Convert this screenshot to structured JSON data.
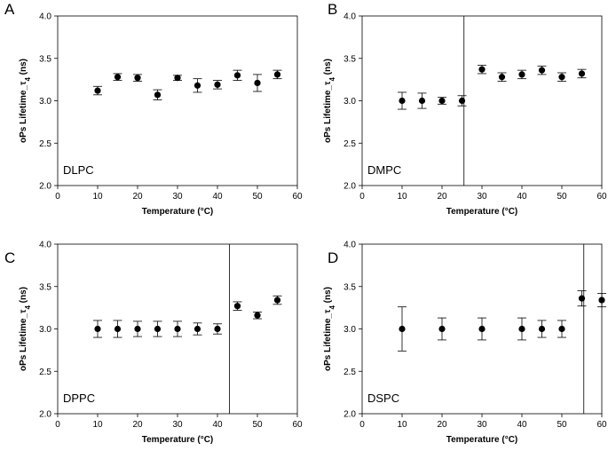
{
  "chart_data": [
    {
      "type": "scatter",
      "panel_letter": "A",
      "annotation": "DLPC",
      "xlabel": "Temperature (°C)",
      "ylabel": "oPs Lifetime_τ4 (ns)",
      "xlim": [
        0,
        60
      ],
      "ylim": [
        2.0,
        4.0
      ],
      "xticks": [
        "0",
        "10",
        "20",
        "30",
        "40",
        "50",
        "60"
      ],
      "yticks": [
        "2.0",
        "2.5",
        "3.0",
        "3.5",
        "4.0"
      ],
      "transition_temperature": null,
      "x": [
        10,
        15,
        20,
        25,
        30,
        35,
        40,
        45,
        50,
        55
      ],
      "y": [
        3.12,
        3.28,
        3.27,
        3.07,
        3.27,
        3.18,
        3.19,
        3.3,
        3.21,
        3.31
      ],
      "err": [
        0.05,
        0.04,
        0.04,
        0.06,
        0.03,
        0.08,
        0.05,
        0.06,
        0.1,
        0.05
      ]
    },
    {
      "type": "scatter",
      "panel_letter": "B",
      "annotation": "DMPC",
      "xlabel": "Temperature (°C)",
      "ylabel": "oPs Lifetime_τ4 (ns)",
      "xlim": [
        0,
        60
      ],
      "ylim": [
        2.0,
        4.0
      ],
      "xticks": [
        "0",
        "10",
        "20",
        "30",
        "40",
        "50",
        "60"
      ],
      "yticks": [
        "2.0",
        "2.5",
        "3.0",
        "3.5",
        "4.0"
      ],
      "transition_temperature": 25.5,
      "x": [
        10,
        15,
        20,
        25,
        30,
        35,
        40,
        45,
        50,
        55
      ],
      "y": [
        3.0,
        3.0,
        3.0,
        3.0,
        3.37,
        3.28,
        3.31,
        3.36,
        3.28,
        3.32
      ],
      "err": [
        0.1,
        0.09,
        0.04,
        0.06,
        0.05,
        0.05,
        0.05,
        0.05,
        0.05,
        0.05
      ]
    },
    {
      "type": "scatter",
      "panel_letter": "C",
      "annotation": "DPPC",
      "xlabel": "Temperature (°C)",
      "ylabel": "oPs Lifetime_τ4 (ns)",
      "xlim": [
        0,
        60
      ],
      "ylim": [
        2.0,
        4.0
      ],
      "xticks": [
        "0",
        "10",
        "20",
        "30",
        "40",
        "50",
        "60"
      ],
      "yticks": [
        "2.0",
        "2.5",
        "3.0",
        "3.5",
        "4.0"
      ],
      "transition_temperature": 43,
      "x": [
        10,
        15,
        20,
        25,
        30,
        35,
        40,
        45,
        50,
        55
      ],
      "y": [
        3.0,
        3.0,
        3.0,
        3.0,
        3.0,
        3.0,
        3.0,
        3.27,
        3.16,
        3.34
      ],
      "err": [
        0.1,
        0.1,
        0.09,
        0.09,
        0.09,
        0.07,
        0.06,
        0.05,
        0.04,
        0.05
      ]
    },
    {
      "type": "scatter",
      "panel_letter": "D",
      "annotation": "DSPC",
      "xlabel": "Temperature (°C)",
      "ylabel": "oPs Lifetime_τ4 (ns)",
      "xlim": [
        0,
        60
      ],
      "ylim": [
        2.0,
        4.0
      ],
      "xticks": [
        "0",
        "10",
        "20",
        "30",
        "40",
        "50",
        "60"
      ],
      "yticks": [
        "2.0",
        "2.5",
        "3.0",
        "3.5",
        "4.0"
      ],
      "transition_temperature": 55.5,
      "x": [
        10,
        20,
        30,
        40,
        45,
        50,
        55,
        60
      ],
      "y": [
        3.0,
        3.0,
        3.0,
        3.0,
        3.0,
        3.0,
        3.36,
        3.34
      ],
      "err": [
        0.26,
        0.13,
        0.13,
        0.13,
        0.1,
        0.1,
        0.09,
        0.08
      ]
    }
  ]
}
